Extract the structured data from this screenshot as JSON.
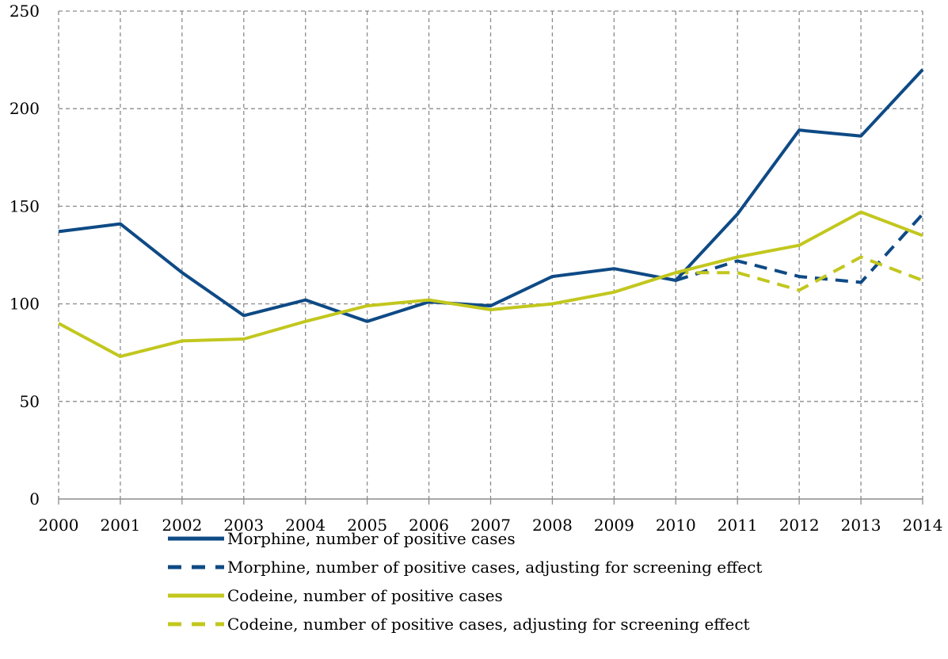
{
  "chart_data": {
    "type": "line",
    "title": "",
    "xlabel": "",
    "ylabel": "",
    "x": [
      2000,
      2001,
      2002,
      2003,
      2004,
      2005,
      2006,
      2007,
      2008,
      2009,
      2010,
      2011,
      2012,
      2013,
      2014
    ],
    "xlim": [
      2000,
      2014
    ],
    "ylim": [
      0,
      250
    ],
    "yticks": [
      0,
      50,
      100,
      150,
      200,
      250
    ],
    "grid": true,
    "grid_style": "dashed",
    "legend_position": "bottom",
    "series": [
      {
        "name": "Morphine, number of positive cases",
        "color": "#0e4a85",
        "style": "solid",
        "x": [
          2000,
          2001,
          2002,
          2003,
          2004,
          2005,
          2006,
          2007,
          2008,
          2009,
          2010,
          2011,
          2012,
          2013,
          2014
        ],
        "values": [
          137,
          141,
          116,
          94,
          102,
          91,
          101,
          99,
          114,
          118,
          112,
          146,
          189,
          186,
          220
        ]
      },
      {
        "name": "Morphine, number of positive cases, adjusting for screening effect",
        "color": "#0e4a85",
        "style": "dashed",
        "x": [
          2010,
          2011,
          2012,
          2013,
          2014
        ],
        "values": [
          112,
          122,
          114,
          111,
          146
        ]
      },
      {
        "name": "Codeine, number of positive cases",
        "color": "#c2c71e",
        "style": "solid",
        "x": [
          2000,
          2001,
          2002,
          2003,
          2004,
          2005,
          2006,
          2007,
          2008,
          2009,
          2010,
          2011,
          2012,
          2013,
          2014
        ],
        "values": [
          90,
          73,
          81,
          82,
          91,
          99,
          102,
          97,
          100,
          106,
          116,
          124,
          130,
          147,
          135
        ]
      },
      {
        "name": "Codeine, number of positive cases, adjusting for screening effect",
        "color": "#c2c71e",
        "style": "dashed",
        "x": [
          2010,
          2011,
          2012,
          2013,
          2014
        ],
        "values": [
          116,
          116,
          107,
          124,
          112
        ]
      }
    ]
  }
}
